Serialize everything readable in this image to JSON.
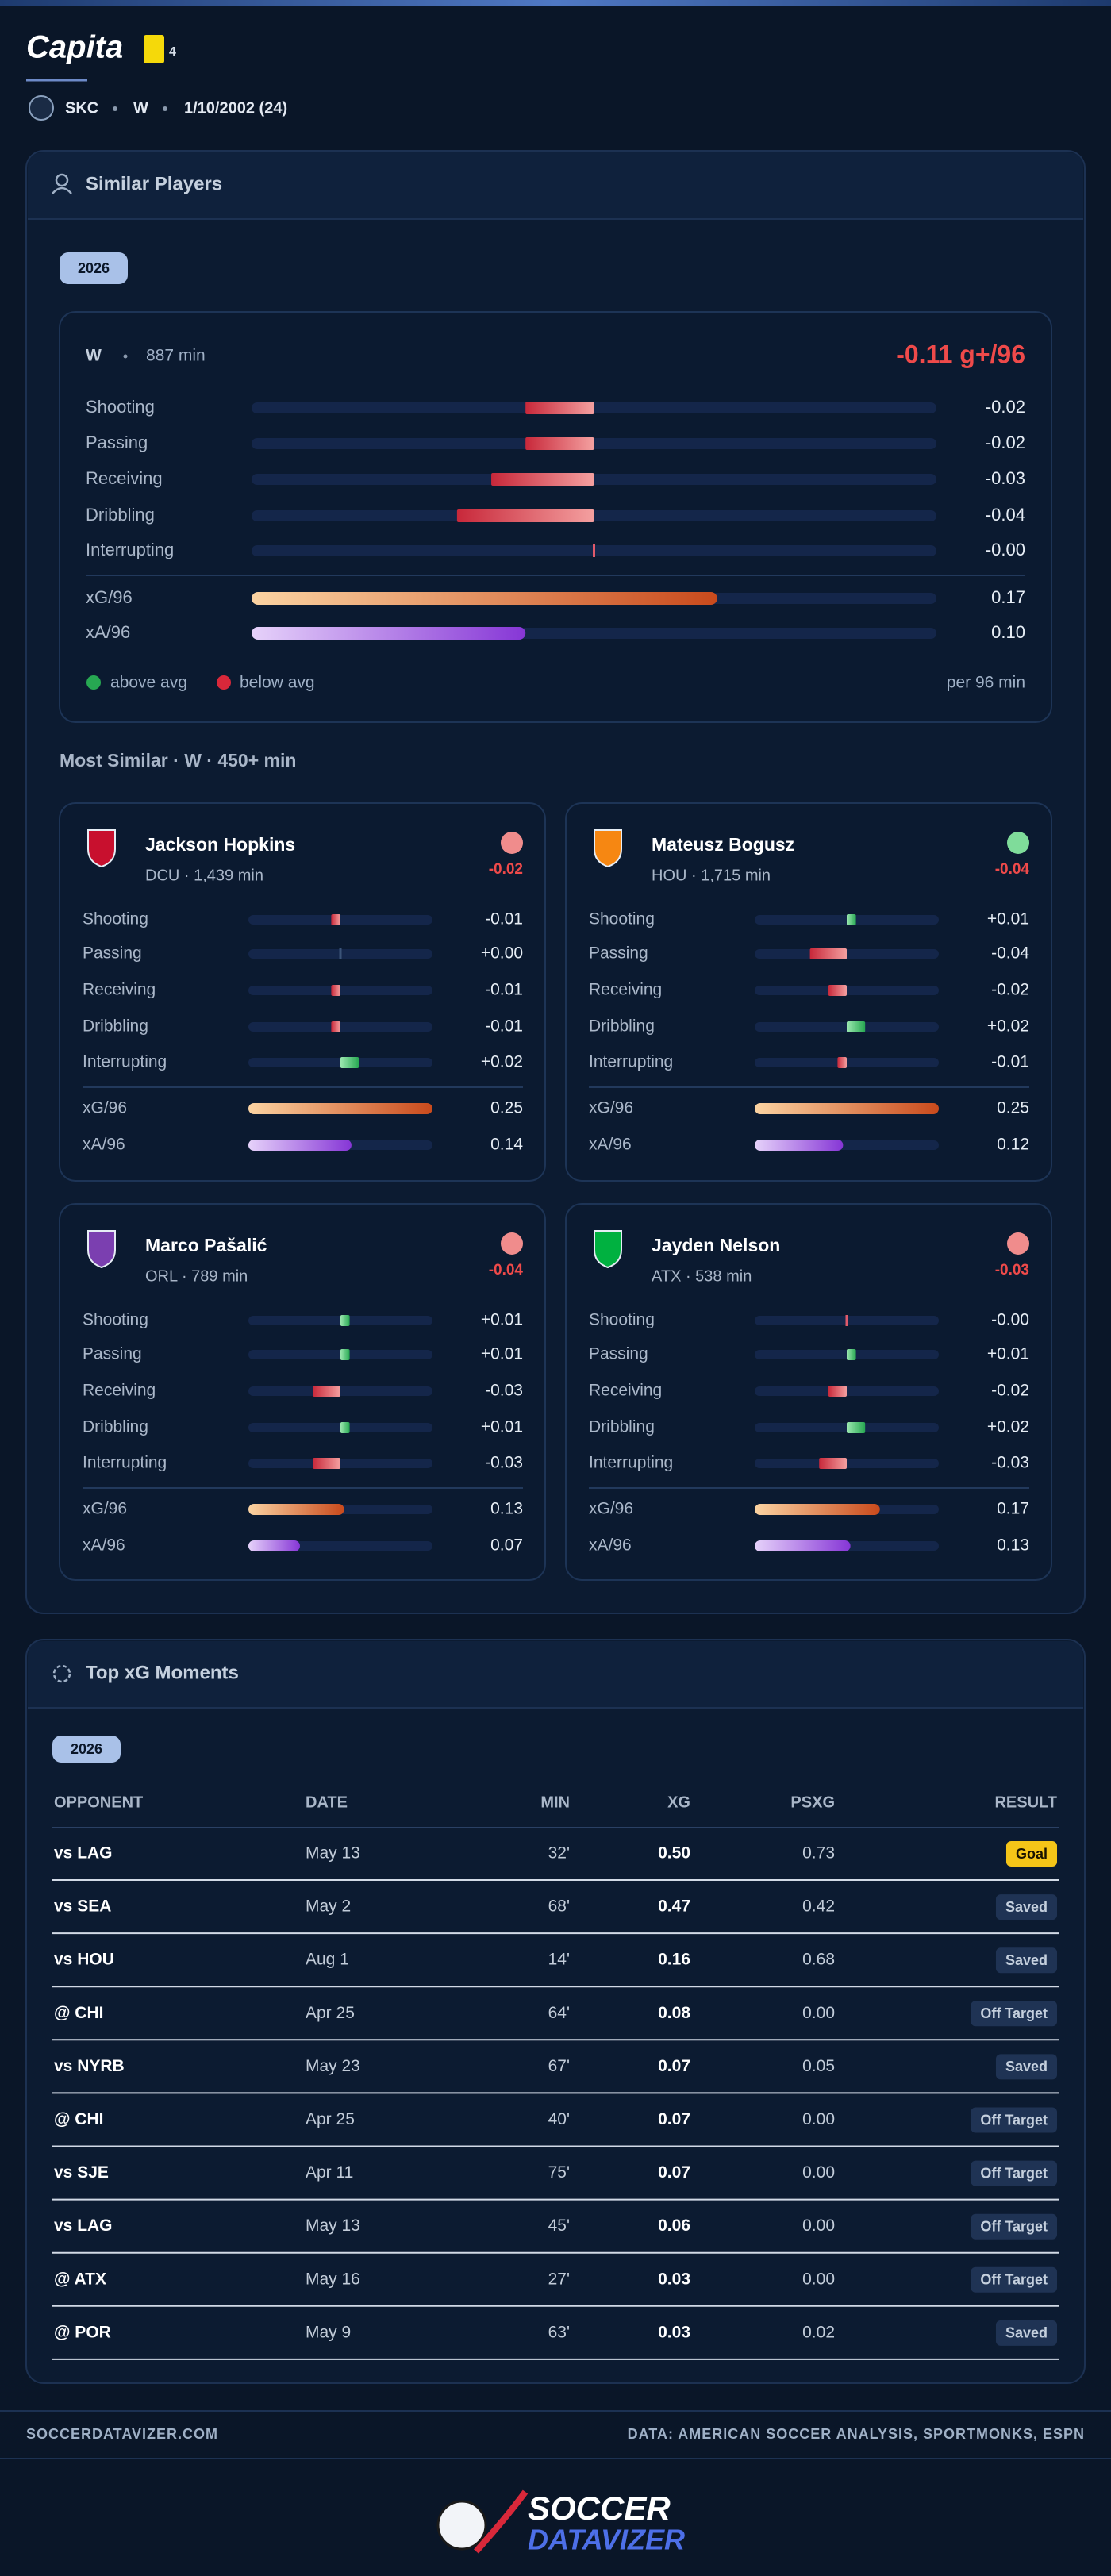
{
  "header": {
    "name": "Capita",
    "yellow_cards": "4",
    "team": "SKC",
    "position": "W",
    "birth": "1/10/2002 (24)"
  },
  "similar": {
    "title": "Similar Players",
    "season": "2026",
    "player": {
      "position": "W",
      "minutes": "887 min",
      "total": "-0.11 g+/96",
      "stats": [
        {
          "name": "Shooting",
          "value": -0.02,
          "label": "-0.02"
        },
        {
          "name": "Passing",
          "value": -0.02,
          "label": "-0.02"
        },
        {
          "name": "Receiving",
          "value": -0.03,
          "label": "-0.03"
        },
        {
          "name": "Dribbling",
          "value": -0.04,
          "label": "-0.04"
        },
        {
          "name": "Interrupting",
          "value": 0,
          "label": "-0.00"
        }
      ],
      "rates": [
        {
          "name": "xG/96",
          "value": 0.17,
          "label": "0.17"
        },
        {
          "name": "xA/96",
          "value": 0.1,
          "label": "0.10"
        }
      ]
    },
    "legend": {
      "above": "above avg",
      "below": "below avg",
      "per": "per 96 min"
    },
    "most_similar_title": "Most Similar · W · 450+ min",
    "comparables": [
      {
        "name": "Jackson Hopkins",
        "info": "DCU · 1,439 min",
        "diff": "-0.02",
        "dot_color": "#f08c8c",
        "logo_color": "#c8102e",
        "stats": [
          {
            "name": "Shooting",
            "value": -0.01,
            "label": "-0.01"
          },
          {
            "name": "Passing",
            "value": 0,
            "label": "+0.00"
          },
          {
            "name": "Receiving",
            "value": -0.01,
            "label": "-0.01"
          },
          {
            "name": "Dribbling",
            "value": -0.01,
            "label": "-0.01"
          },
          {
            "name": "Interrupting",
            "value": 0.02,
            "label": "+0.02"
          }
        ],
        "rates": [
          {
            "name": "xG/96",
            "value": 0.25,
            "label": "0.25"
          },
          {
            "name": "xA/96",
            "value": 0.14,
            "label": "0.14"
          }
        ]
      },
      {
        "name": "Mateusz Bogusz",
        "info": "HOU · 1,715 min",
        "diff": "-0.04",
        "dot_color": "#7fdc9a",
        "logo_color": "#f68712",
        "stats": [
          {
            "name": "Shooting",
            "value": 0.01,
            "label": "+0.01"
          },
          {
            "name": "Passing",
            "value": -0.04,
            "label": "-0.04"
          },
          {
            "name": "Receiving",
            "value": -0.02,
            "label": "-0.02"
          },
          {
            "name": "Dribbling",
            "value": 0.02,
            "label": "+0.02"
          },
          {
            "name": "Interrupting",
            "value": -0.01,
            "label": "-0.01"
          }
        ],
        "rates": [
          {
            "name": "xG/96",
            "value": 0.25,
            "label": "0.25"
          },
          {
            "name": "xA/96",
            "value": 0.12,
            "label": "0.12"
          }
        ]
      },
      {
        "name": "Marco Pašalić",
        "info": "ORL · 789 min",
        "diff": "-0.04",
        "dot_color": "#f08c8c",
        "logo_color": "#7b3fb0",
        "stats": [
          {
            "name": "Shooting",
            "value": 0.01,
            "label": "+0.01"
          },
          {
            "name": "Passing",
            "value": 0.01,
            "label": "+0.01"
          },
          {
            "name": "Receiving",
            "value": -0.03,
            "label": "-0.03"
          },
          {
            "name": "Dribbling",
            "value": 0.01,
            "label": "+0.01"
          },
          {
            "name": "Interrupting",
            "value": -0.03,
            "label": "-0.03"
          }
        ],
        "rates": [
          {
            "name": "xG/96",
            "value": 0.13,
            "label": "0.13"
          },
          {
            "name": "xA/96",
            "value": 0.07,
            "label": "0.07"
          }
        ]
      },
      {
        "name": "Jayden Nelson",
        "info": "ATX · 538 min",
        "diff": "-0.03",
        "dot_color": "#f08c8c",
        "logo_color": "#00b140",
        "stats": [
          {
            "name": "Shooting",
            "value": 0,
            "label": "-0.00"
          },
          {
            "name": "Passing",
            "value": 0.01,
            "label": "+0.01"
          },
          {
            "name": "Receiving",
            "value": -0.02,
            "label": "-0.02"
          },
          {
            "name": "Dribbling",
            "value": 0.02,
            "label": "+0.02"
          },
          {
            "name": "Interrupting",
            "value": -0.03,
            "label": "-0.03"
          }
        ],
        "rates": [
          {
            "name": "xG/96",
            "value": 0.17,
            "label": "0.17"
          },
          {
            "name": "xA/96",
            "value": 0.13,
            "label": "0.13"
          }
        ]
      }
    ]
  },
  "moments": {
    "title": "Top xG Moments",
    "season": "2026",
    "columns": [
      "OPPONENT",
      "DATE",
      "MIN",
      "XG",
      "PSXG",
      "RESULT"
    ],
    "rows": [
      {
        "cells": [
          "vs LAG",
          "May 13",
          "32'",
          "0.50",
          "0.73",
          "Goal"
        ],
        "badge_color": "#f5c518"
      },
      {
        "cells": [
          "vs SEA",
          "May 2",
          "68'",
          "0.47",
          "0.42",
          "Saved"
        ],
        "badge_color": "#1f3354"
      },
      {
        "cells": [
          "vs HOU",
          "Aug 1",
          "14'",
          "0.16",
          "0.68",
          "Saved"
        ],
        "badge_color": "#1f3354"
      },
      {
        "cells": [
          "@ CHI",
          "Apr 25",
          "64'",
          "0.08",
          "0.00",
          "Off Target"
        ],
        "badge_color": "#1f3354"
      },
      {
        "cells": [
          "vs NYRB",
          "May 23",
          "67'",
          "0.07",
          "0.05",
          "Saved"
        ],
        "badge_color": "#1f3354"
      },
      {
        "cells": [
          "@ CHI",
          "Apr 25",
          "40'",
          "0.07",
          "0.00",
          "Off Target"
        ],
        "badge_color": "#1f3354"
      },
      {
        "cells": [
          "vs SJE",
          "Apr 11",
          "75'",
          "0.07",
          "0.00",
          "Off Target"
        ],
        "badge_color": "#1f3354"
      },
      {
        "cells": [
          "vs LAG",
          "May 13",
          "45'",
          "0.06",
          "0.00",
          "Off Target"
        ],
        "badge_color": "#1f3354"
      },
      {
        "cells": [
          "@ ATX",
          "May 16",
          "27'",
          "0.03",
          "0.00",
          "Off Target"
        ],
        "badge_color": "#1f3354"
      },
      {
        "cells": [
          "@ POR",
          "May 9",
          "63'",
          "0.03",
          "0.02",
          "Saved"
        ],
        "badge_color": "#1f3354"
      }
    ]
  },
  "footer": {
    "site": "SOCCERDATAVIZER.COM",
    "source": "DATA: AMERICAN SOCCER ANALYSIS, SPORTMONKS, ESPN",
    "logo_top": "SOCCER",
    "logo_bottom": "DATAVIZER"
  }
}
